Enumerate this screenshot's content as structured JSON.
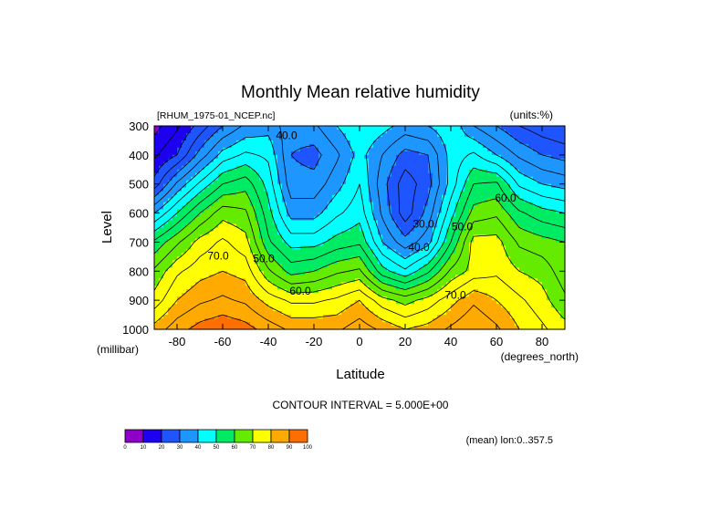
{
  "chart_data": {
    "type": "heatmap",
    "title": "Monthly Mean relative humidity",
    "source_label": "[RHUM_1975-01_NCEP.nc]",
    "units_label": "(units:%)",
    "xlabel": "Latitude",
    "x_units": "(degrees_north)",
    "ylabel": "Level",
    "y_units": "(millibar)",
    "xlim": [
      -90,
      90
    ],
    "ylim": [
      1000,
      300
    ],
    "x_ticks": [
      -80,
      -60,
      -40,
      -20,
      0,
      20,
      40,
      60,
      80
    ],
    "x_tick_labels": [
      "-80",
      "-60",
      "-40",
      "-20",
      "0",
      "20",
      "40",
      "60",
      "80"
    ],
    "y_ticks": [
      300,
      400,
      500,
      600,
      700,
      800,
      900,
      1000
    ],
    "y_tick_labels": [
      "300",
      "400",
      "500",
      "600",
      "700",
      "800",
      "900",
      "1000"
    ],
    "contour_interval_text": "CONTOUR INTERVAL = 5.000E+00",
    "averaging_text": "(mean) lon:0..357.5",
    "x": [
      -90,
      -80,
      -70,
      -60,
      -50,
      -40,
      -30,
      -20,
      -10,
      0,
      10,
      20,
      30,
      40,
      50,
      60,
      70,
      80,
      90
    ],
    "y": [
      300,
      400,
      500,
      600,
      700,
      800,
      900,
      1000
    ],
    "z": [
      [
        8,
        14,
        22,
        30,
        36,
        38,
        32,
        34,
        40,
        45,
        42,
        38,
        40,
        44,
        35,
        30,
        25,
        22,
        20
      ],
      [
        14,
        20,
        32,
        42,
        46,
        44,
        30,
        28,
        34,
        42,
        35,
        28,
        30,
        42,
        46,
        40,
        34,
        30,
        28
      ],
      [
        22,
        36,
        46,
        55,
        58,
        48,
        32,
        32,
        38,
        45,
        32,
        22,
        28,
        42,
        55,
        56,
        44,
        40,
        38
      ],
      [
        40,
        50,
        60,
        68,
        66,
        52,
        38,
        38,
        44,
        48,
        34,
        22,
        32,
        48,
        62,
        64,
        56,
        52,
        50
      ],
      [
        56,
        64,
        72,
        76,
        72,
        56,
        48,
        48,
        52,
        54,
        40,
        32,
        38,
        55,
        72,
        72,
        64,
        62,
        60
      ],
      [
        66,
        74,
        78,
        80,
        78,
        66,
        58,
        60,
        64,
        66,
        52,
        46,
        54,
        66,
        72,
        74,
        70,
        68,
        62
      ],
      [
        72,
        80,
        84,
        86,
        84,
        78,
        74,
        74,
        76,
        80,
        72,
        68,
        72,
        78,
        84,
        80,
        76,
        72,
        66
      ],
      [
        82,
        88,
        92,
        94,
        92,
        88,
        84,
        84,
        84,
        88,
        84,
        80,
        82,
        86,
        90,
        86,
        80,
        76,
        72
      ]
    ],
    "contour_labels": [
      {
        "text": "40.0",
        "x": -32,
        "y": 345
      },
      {
        "text": "50.0",
        "x": -42,
        "y": 770
      },
      {
        "text": "60.0",
        "x": -26,
        "y": 880
      },
      {
        "text": "70.0",
        "x": -62,
        "y": 760
      },
      {
        "text": "40.0",
        "x": 26,
        "y": 730
      },
      {
        "text": "30.0",
        "x": 28,
        "y": 650
      },
      {
        "text": "50.0",
        "x": 45,
        "y": 660
      },
      {
        "text": "70.0",
        "x": 42,
        "y": 895
      },
      {
        "text": "60.0",
        "x": 64,
        "y": 560
      }
    ],
    "colorbar": {
      "levels": [
        "0",
        "10",
        "20",
        "30",
        "40",
        "50",
        "60",
        "70",
        "80",
        "90",
        "100"
      ],
      "colors": [
        "#8e00c8",
        "#1e00f0",
        "#1e55ff",
        "#1e96ff",
        "#00ffff",
        "#00eb64",
        "#64eb00",
        "#ffff00",
        "#ffaa00",
        "#ff6e00",
        "#ff0000"
      ]
    },
    "grid": false,
    "legend_placement": "bottom-left"
  }
}
